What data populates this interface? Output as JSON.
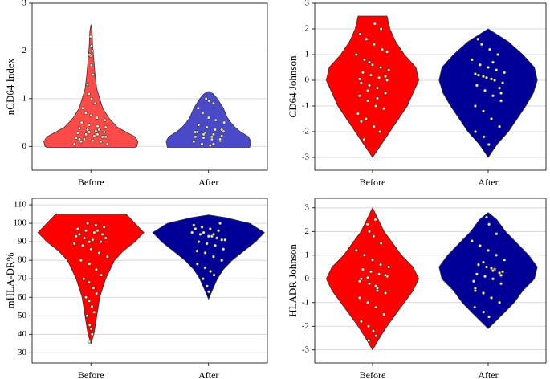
{
  "chart_data": [
    {
      "type": "violin",
      "ylabel": "nCD64 Index",
      "categories": [
        "Before",
        "After"
      ],
      "ylim": [
        -0.5,
        3
      ],
      "yticks": [
        0,
        1,
        2,
        3
      ],
      "violins": [
        {
          "color": "#ff4a4a",
          "values": [
            0.05,
            0.1,
            0.12,
            0.15,
            0.18,
            0.2,
            0.22,
            0.25,
            0.28,
            0.3,
            0.32,
            0.35,
            0.38,
            0.4,
            0.42,
            0.45,
            0.5,
            0.55,
            0.6,
            0.65,
            0.7,
            0.8,
            0.9,
            1.0,
            1.1,
            1.3,
            1.5,
            1.7,
            1.9,
            1.92,
            2.0,
            2.1,
            2.3,
            0.15,
            0.2,
            0.25,
            0.3,
            0.1,
            0.05,
            0.35
          ],
          "outline_y": [
            -0.02,
            0,
            0.1,
            0.2,
            0.3,
            0.4,
            0.6,
            0.8,
            1.0,
            1.2,
            1.5,
            1.8,
            2.1,
            2.4,
            2.55
          ],
          "outline_w": [
            0.75,
            0.78,
            0.8,
            0.75,
            0.6,
            0.45,
            0.3,
            0.2,
            0.15,
            0.1,
            0.07,
            0.05,
            0.03,
            0.02,
            0
          ]
        },
        {
          "color": "#4a4ac8",
          "values": [
            0.02,
            0.05,
            0.1,
            0.12,
            0.15,
            0.18,
            0.2,
            0.22,
            0.25,
            0.28,
            0.3,
            0.32,
            0.35,
            0.4,
            0.45,
            0.5,
            0.55,
            0.6,
            0.7,
            0.8,
            0.9,
            0.95,
            1.0,
            0.1,
            0.15,
            0.2,
            0.25,
            0.3,
            0.35,
            0.05
          ],
          "outline_y": [
            -0.02,
            0.1,
            0.2,
            0.3,
            0.4,
            0.5,
            0.6,
            0.8,
            1.0,
            1.1,
            1.15
          ],
          "outline_w": [
            0.7,
            0.72,
            0.68,
            0.55,
            0.45,
            0.38,
            0.32,
            0.25,
            0.15,
            0.08,
            0
          ]
        }
      ]
    },
    {
      "type": "violin",
      "ylabel": "CD64 Johnson",
      "categories": [
        "Before",
        "After"
      ],
      "ylim": [
        -3.5,
        3
      ],
      "yticks": [
        -3,
        -2,
        -1,
        0,
        1,
        2,
        3
      ],
      "violins": [
        {
          "color": "#ff0000",
          "values": [
            -2.3,
            -2.0,
            -1.8,
            -1.5,
            -1.3,
            -1.1,
            -1.0,
            -0.8,
            -0.6,
            -0.5,
            -0.3,
            -0.2,
            -0.1,
            0,
            0.1,
            0.2,
            0.3,
            0.4,
            0.5,
            0.6,
            0.8,
            1.0,
            1.2,
            1.4,
            1.6,
            1.8,
            2.0,
            2.2,
            -0.4,
            0.05,
            0.15,
            -0.7,
            0.7,
            -1.6,
            1.1
          ],
          "outline_y": [
            -3,
            -2.5,
            -2,
            -1.5,
            -1,
            -0.5,
            0,
            0.5,
            1,
            1.5,
            2,
            2.5
          ],
          "outline_w": [
            0,
            0.15,
            0.3,
            0.45,
            0.6,
            0.7,
            0.8,
            0.75,
            0.55,
            0.4,
            0.3,
            0.25
          ]
        },
        {
          "color": "#000096",
          "values": [
            -2.5,
            -2.2,
            -2.0,
            -1.8,
            -1.5,
            -1.2,
            -1.0,
            -0.8,
            -0.6,
            -0.4,
            -0.2,
            -0.1,
            0,
            0.1,
            0.2,
            0.3,
            0.4,
            0.5,
            0.6,
            0.8,
            1.0,
            1.2,
            1.4,
            1.6,
            -0.3,
            0.05,
            0.15,
            0.25,
            -0.5,
            0.7
          ],
          "outline_y": [
            -3,
            -2.5,
            -2,
            -1.5,
            -1,
            -0.5,
            0,
            0.5,
            1,
            1.5,
            2
          ],
          "outline_w": [
            0,
            0.15,
            0.35,
            0.5,
            0.65,
            0.78,
            0.85,
            0.8,
            0.6,
            0.35,
            0
          ]
        }
      ]
    },
    {
      "type": "violin",
      "ylabel": "mHLA-DR%",
      "categories": [
        "Before",
        "After"
      ],
      "ylim": [
        24.5,
        113.5
      ],
      "yticks": [
        30,
        40,
        50,
        60,
        70,
        80,
        90,
        100,
        110
      ],
      "violins": [
        {
          "color": "#ff0000",
          "values": [
            36,
            40,
            43,
            45,
            50,
            52,
            55,
            58,
            60,
            62,
            65,
            68,
            70,
            72,
            75,
            78,
            80,
            82,
            84,
            86,
            88,
            89,
            90,
            91,
            92,
            93,
            94,
            95,
            96,
            97,
            98,
            99,
            100,
            94,
            92,
            96,
            90
          ],
          "outline_y": [
            35,
            40,
            50,
            60,
            70,
            80,
            85,
            90,
            95,
            100,
            105
          ],
          "outline_w": [
            0,
            0.05,
            0.1,
            0.15,
            0.25,
            0.4,
            0.55,
            0.75,
            0.9,
            0.75,
            0.6
          ]
        },
        {
          "color": "#000096",
          "values": [
            63,
            66,
            70,
            72,
            74,
            76,
            78,
            80,
            82,
            84,
            85,
            86,
            88,
            89,
            90,
            91,
            92,
            93,
            94,
            95,
            96,
            97,
            98,
            99,
            100,
            93,
            95,
            97,
            91,
            94
          ],
          "outline_y": [
            59,
            65,
            70,
            75,
            80,
            85,
            90,
            95,
            100,
            103,
            104.5
          ],
          "outline_w": [
            0,
            0.08,
            0.15,
            0.25,
            0.4,
            0.6,
            0.8,
            0.95,
            0.7,
            0.3,
            0
          ]
        }
      ]
    },
    {
      "type": "violin",
      "ylabel": "HLADR Johnson",
      "categories": [
        "Before",
        "After"
      ],
      "ylim": [
        -3.55,
        3.4
      ],
      "yticks": [
        -3,
        -2,
        -1,
        0,
        1,
        2,
        3
      ],
      "violins": [
        {
          "color": "#ff0000",
          "values": [
            -2.6,
            -2.4,
            -2.2,
            -2.0,
            -1.8,
            -1.5,
            -1.2,
            -1.0,
            -0.8,
            -0.6,
            -0.4,
            -0.2,
            0,
            0.1,
            0.2,
            0.3,
            0.4,
            0.5,
            0.6,
            0.8,
            1.0,
            1.2,
            1.5,
            1.8,
            2.0,
            2.3,
            2.5,
            -0.3,
            0.05,
            -0.1,
            0.15,
            -0.5
          ],
          "outline_y": [
            -3,
            -2.5,
            -2,
            -1.5,
            -1,
            -0.5,
            0,
            0.5,
            1,
            1.5,
            2,
            2.5,
            3
          ],
          "outline_w": [
            0,
            0.12,
            0.25,
            0.4,
            0.55,
            0.7,
            0.8,
            0.7,
            0.5,
            0.35,
            0.2,
            0.1,
            0
          ]
        },
        {
          "color": "#000096",
          "values": [
            -1.6,
            -1.4,
            -1.2,
            -1.0,
            -0.8,
            -0.6,
            -0.4,
            -0.2,
            0,
            0.1,
            0.2,
            0.3,
            0.4,
            0.5,
            0.6,
            0.8,
            1.0,
            1.2,
            1.4,
            1.6,
            1.9,
            2.3,
            2.6,
            -0.1,
            0.25,
            0.45,
            0.7,
            -0.5,
            0.15,
            0.35
          ],
          "outline_y": [
            -2.1,
            -1.5,
            -1,
            -0.5,
            0,
            0.5,
            1,
            1.5,
            2,
            2.5,
            2.8
          ],
          "outline_w": [
            0,
            0.25,
            0.45,
            0.6,
            0.8,
            0.85,
            0.7,
            0.5,
            0.3,
            0.15,
            0
          ]
        }
      ]
    }
  ]
}
